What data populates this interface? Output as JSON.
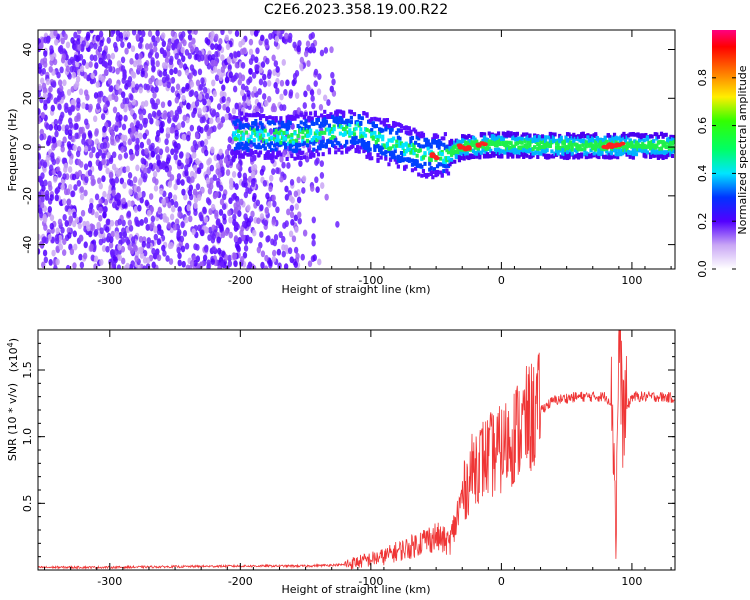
{
  "title": "C2E6.2023.358.19.00.R22",
  "chart_data": [
    {
      "type": "heatmap",
      "xlabel": "Height of straight line (km)",
      "ylabel": "Frequency (Hz)",
      "xlim": [
        -355,
        133
      ],
      "ylim": [
        -50,
        48
      ],
      "xticks": [
        -300,
        -200,
        -100,
        0,
        100
      ],
      "xtick_labels": [
        "-300",
        "-200",
        "-100",
        "0",
        "100"
      ],
      "yticks": [
        -40,
        -20,
        0,
        20,
        40
      ],
      "ytick_labels": [
        "-40",
        "-20",
        "0",
        "20",
        "40"
      ],
      "grid": false,
      "colorbar": {
        "label": "Normalized spectral amplitude",
        "range": [
          0,
          1
        ],
        "ticks": [
          0.0,
          0.2,
          0.4,
          0.6,
          0.8
        ],
        "tick_labels": [
          "0.0",
          "0.2",
          "0.4",
          "0.6",
          "0.8"
        ],
        "colormap": "rainbow (white-violet-blue-cyan-green-yellow-red-magenta)"
      },
      "ridge_center_hz": [
        {
          "x": -200,
          "y": 5
        },
        {
          "x": -160,
          "y": 4
        },
        {
          "x": -130,
          "y": 6
        },
        {
          "x": -110,
          "y": 7
        },
        {
          "x": -100,
          "y": 4
        },
        {
          "x": -80,
          "y": 1
        },
        {
          "x": -60,
          "y": -3
        },
        {
          "x": -45,
          "y": -4
        },
        {
          "x": -30,
          "y": 0
        },
        {
          "x": -10,
          "y": 1
        },
        {
          "x": 0,
          "y": 1
        },
        {
          "x": 50,
          "y": 0.5
        },
        {
          "x": 100,
          "y": 0.5
        },
        {
          "x": 133,
          "y": 0.5
        }
      ],
      "hotspots_x": [
        -50,
        -30,
        -28,
        -15,
        80,
        85,
        90
      ]
    },
    {
      "type": "line",
      "xlabel": "Height of straight line (km)",
      "ylabel": "SNR (10 * v/v)",
      "multiplier_label": "(x10",
      "multiplier_exp": "4",
      "multiplier_close": ")",
      "xlim": [
        -355,
        133
      ],
      "ylim": [
        0,
        1.8
      ],
      "xticks": [
        -300,
        -200,
        -100,
        0,
        100
      ],
      "xtick_labels": [
        "-300",
        "-200",
        "-100",
        "0",
        "100"
      ],
      "yticks": [
        0.5,
        1.0,
        1.5
      ],
      "ytick_labels": [
        "0.5",
        "1.0",
        "1.5"
      ],
      "grid": false,
      "series": [
        {
          "color": "#ef3535",
          "points": [
            {
              "x": -355,
              "y": 0.02
            },
            {
              "x": -300,
              "y": 0.02
            },
            {
              "x": -250,
              "y": 0.025
            },
            {
              "x": -200,
              "y": 0.03
            },
            {
              "x": -150,
              "y": 0.03
            },
            {
              "x": -120,
              "y": 0.04
            },
            {
              "x": -100,
              "y": 0.08
            },
            {
              "x": -90,
              "y": 0.1
            },
            {
              "x": -80,
              "y": 0.14
            },
            {
              "x": -70,
              "y": 0.17
            },
            {
              "x": -60,
              "y": 0.22
            },
            {
              "x": -50,
              "y": 0.25
            },
            {
              "x": -40,
              "y": 0.2
            },
            {
              "x": -35,
              "y": 0.35
            },
            {
              "x": -30,
              "y": 0.55
            },
            {
              "x": -20,
              "y": 0.8
            },
            {
              "x": -10,
              "y": 0.85
            },
            {
              "x": 0,
              "y": 0.9
            },
            {
              "x": 10,
              "y": 1.02
            },
            {
              "x": 20,
              "y": 1.12
            },
            {
              "x": 30,
              "y": 1.2
            },
            {
              "x": 40,
              "y": 1.27
            },
            {
              "x": 50,
              "y": 1.29
            },
            {
              "x": 60,
              "y": 1.3
            },
            {
              "x": 70,
              "y": 1.3
            },
            {
              "x": 80,
              "y": 1.3
            },
            {
              "x": 85,
              "y": 1.25
            },
            {
              "x": 88,
              "y": 0.3
            },
            {
              "x": 90,
              "y": 1.8
            },
            {
              "x": 93,
              "y": 1.15
            },
            {
              "x": 100,
              "y": 1.3
            },
            {
              "x": 110,
              "y": 1.3
            },
            {
              "x": 120,
              "y": 1.3
            },
            {
              "x": 133,
              "y": 1.29
            }
          ]
        }
      ]
    }
  ]
}
